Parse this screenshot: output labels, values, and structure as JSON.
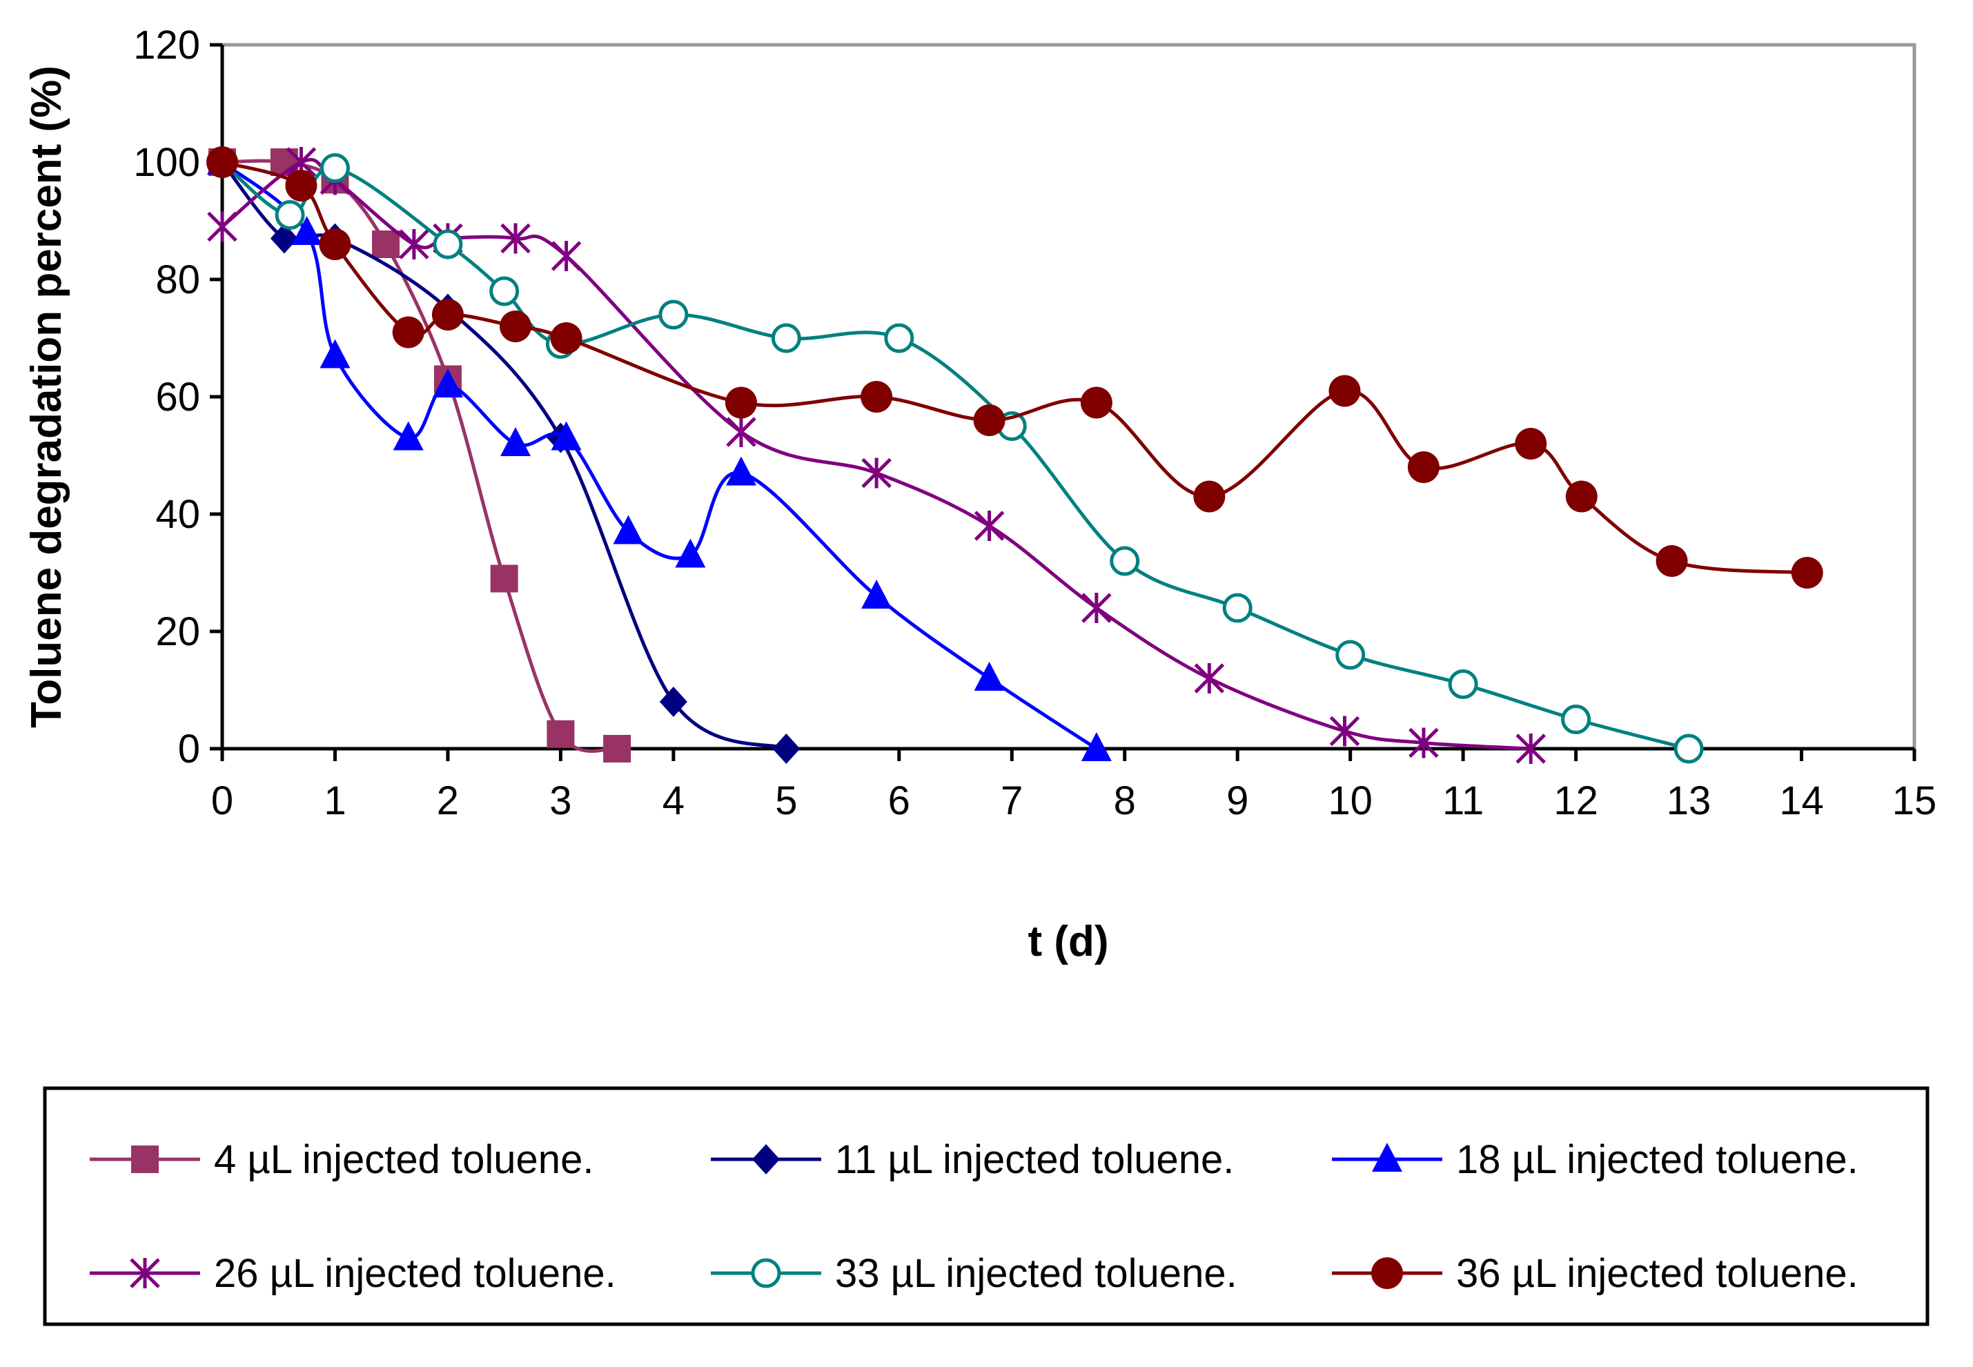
{
  "chart_data": {
    "type": "line",
    "smooth": true,
    "title": "",
    "xlabel": "t (d)",
    "ylabel": "Toluene degradation percent (%)",
    "xlim": [
      0,
      15
    ],
    "ylim": [
      0,
      120
    ],
    "xticks": [
      "0",
      "1",
      "2",
      "3",
      "4",
      "5",
      "6",
      "7",
      "8",
      "9",
      "10",
      "11",
      "12",
      "13",
      "14",
      "15"
    ],
    "yticks": [
      "0",
      "20",
      "40",
      "60",
      "80",
      "100",
      "120"
    ],
    "grid": false,
    "legend_position": "bottom",
    "series": [
      {
        "name": "4 µL injected toluene.",
        "color": "#993366",
        "marker": "square",
        "x": [
          0,
          0.55,
          1.0,
          1.45,
          2.0,
          2.5,
          3.0,
          3.5
        ],
        "y": [
          100,
          100,
          97,
          86,
          63,
          29,
          2.5,
          0
        ]
      },
      {
        "name": "11 µL injected toluene.",
        "color": "#000080",
        "marker": "diamond",
        "x": [
          0,
          0.55,
          1.0,
          2.0,
          3.0,
          4.0,
          5.0
        ],
        "y": [
          100,
          87,
          87,
          75,
          53,
          8,
          0
        ]
      },
      {
        "name": "18 µL injected toluene.",
        "color": "#0000FF",
        "marker": "triangle",
        "x": [
          0,
          0.75,
          1.0,
          1.65,
          2.0,
          2.6,
          3.05,
          3.6,
          4.15,
          4.6,
          5.8,
          6.8,
          7.75
        ],
        "y": [
          100,
          88,
          67,
          53,
          62,
          52,
          53,
          37,
          33,
          47,
          26,
          12,
          0
        ]
      },
      {
        "name": "26 µL injected toluene.",
        "color": "#800080",
        "marker": "asterisk",
        "x": [
          0,
          0.7,
          1.0,
          1.7,
          2.0,
          2.6,
          3.05,
          4.6,
          5.8,
          6.8,
          7.75,
          8.75,
          9.95,
          10.65,
          11.6
        ],
        "y": [
          89,
          100,
          97,
          86,
          87,
          87,
          84,
          54,
          47,
          38,
          24,
          12,
          3,
          1,
          0
        ]
      },
      {
        "name": "33 µL injected toluene.",
        "color": "#008080",
        "marker": "circle-open",
        "x": [
          0,
          0.6,
          1.0,
          2.0,
          2.5,
          3.0,
          4.0,
          5.0,
          6.0,
          7.0,
          8.0,
          9.0,
          10.0,
          11.0,
          12.0,
          13.0
        ],
        "y": [
          100,
          91,
          99,
          86,
          78,
          69,
          74,
          70,
          70,
          55,
          32,
          24,
          16,
          11,
          5,
          0
        ]
      },
      {
        "name": "36 µL injected toluene.",
        "color": "#800000",
        "marker": "circle-filled",
        "x": [
          0,
          0.7,
          1.0,
          1.65,
          2.0,
          2.6,
          3.05,
          4.6,
          5.8,
          6.8,
          7.75,
          8.75,
          9.95,
          10.65,
          11.6,
          12.05,
          12.85,
          14.05
        ],
        "y": [
          100,
          96,
          86,
          71,
          74,
          72,
          70,
          59,
          60,
          56,
          59,
          43,
          61,
          48,
          52,
          43,
          32,
          30
        ]
      }
    ]
  }
}
